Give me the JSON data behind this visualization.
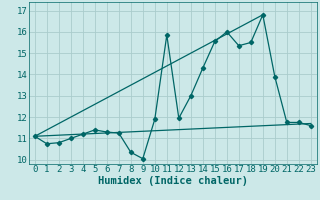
{
  "xlabel": "Humidex (Indice chaleur)",
  "xlim": [
    -0.5,
    23.5
  ],
  "ylim": [
    9.8,
    17.4
  ],
  "background_color": "#cce8e8",
  "grid_color": "#aacccc",
  "line_color": "#006666",
  "series1_x": [
    0,
    1,
    2,
    3,
    4,
    5,
    6,
    7,
    8,
    9,
    10,
    11,
    12,
    13,
    14,
    15,
    16,
    17,
    18,
    19,
    20,
    21,
    22,
    23
  ],
  "series1_y": [
    11.1,
    10.75,
    10.8,
    11.0,
    11.2,
    11.4,
    11.3,
    11.25,
    10.35,
    10.05,
    11.9,
    15.85,
    11.95,
    13.0,
    14.3,
    15.55,
    16.0,
    15.35,
    15.5,
    16.8,
    13.9,
    11.75,
    11.75,
    11.6
  ],
  "series2_x": [
    0,
    23
  ],
  "series2_y": [
    11.1,
    11.7
  ],
  "series3_x": [
    0,
    19
  ],
  "series3_y": [
    11.1,
    16.8
  ],
  "xticks": [
    0,
    1,
    2,
    3,
    4,
    5,
    6,
    7,
    8,
    9,
    10,
    11,
    12,
    13,
    14,
    15,
    16,
    17,
    18,
    19,
    20,
    21,
    22,
    23
  ],
  "yticks": [
    10,
    11,
    12,
    13,
    14,
    15,
    16,
    17
  ],
  "tick_fontsize": 6.5,
  "label_fontsize": 7.5
}
